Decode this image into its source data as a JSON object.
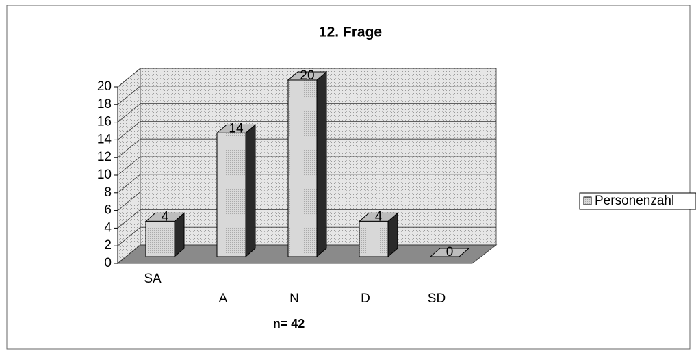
{
  "chart_data": {
    "type": "bar",
    "title": "12. Frage",
    "x_label": "n= 42",
    "categories": [
      "SA",
      "A",
      "N",
      "D",
      "SD"
    ],
    "series": [
      {
        "name": "Personenzahl",
        "color": "#d4d4d4",
        "values": [
          4,
          14,
          20,
          4,
          0
        ]
      }
    ],
    "ylim": [
      0,
      20
    ],
    "yticks": [
      0,
      2,
      4,
      6,
      8,
      10,
      12,
      14,
      16,
      18,
      20
    ],
    "grid": true,
    "legend": "right"
  }
}
